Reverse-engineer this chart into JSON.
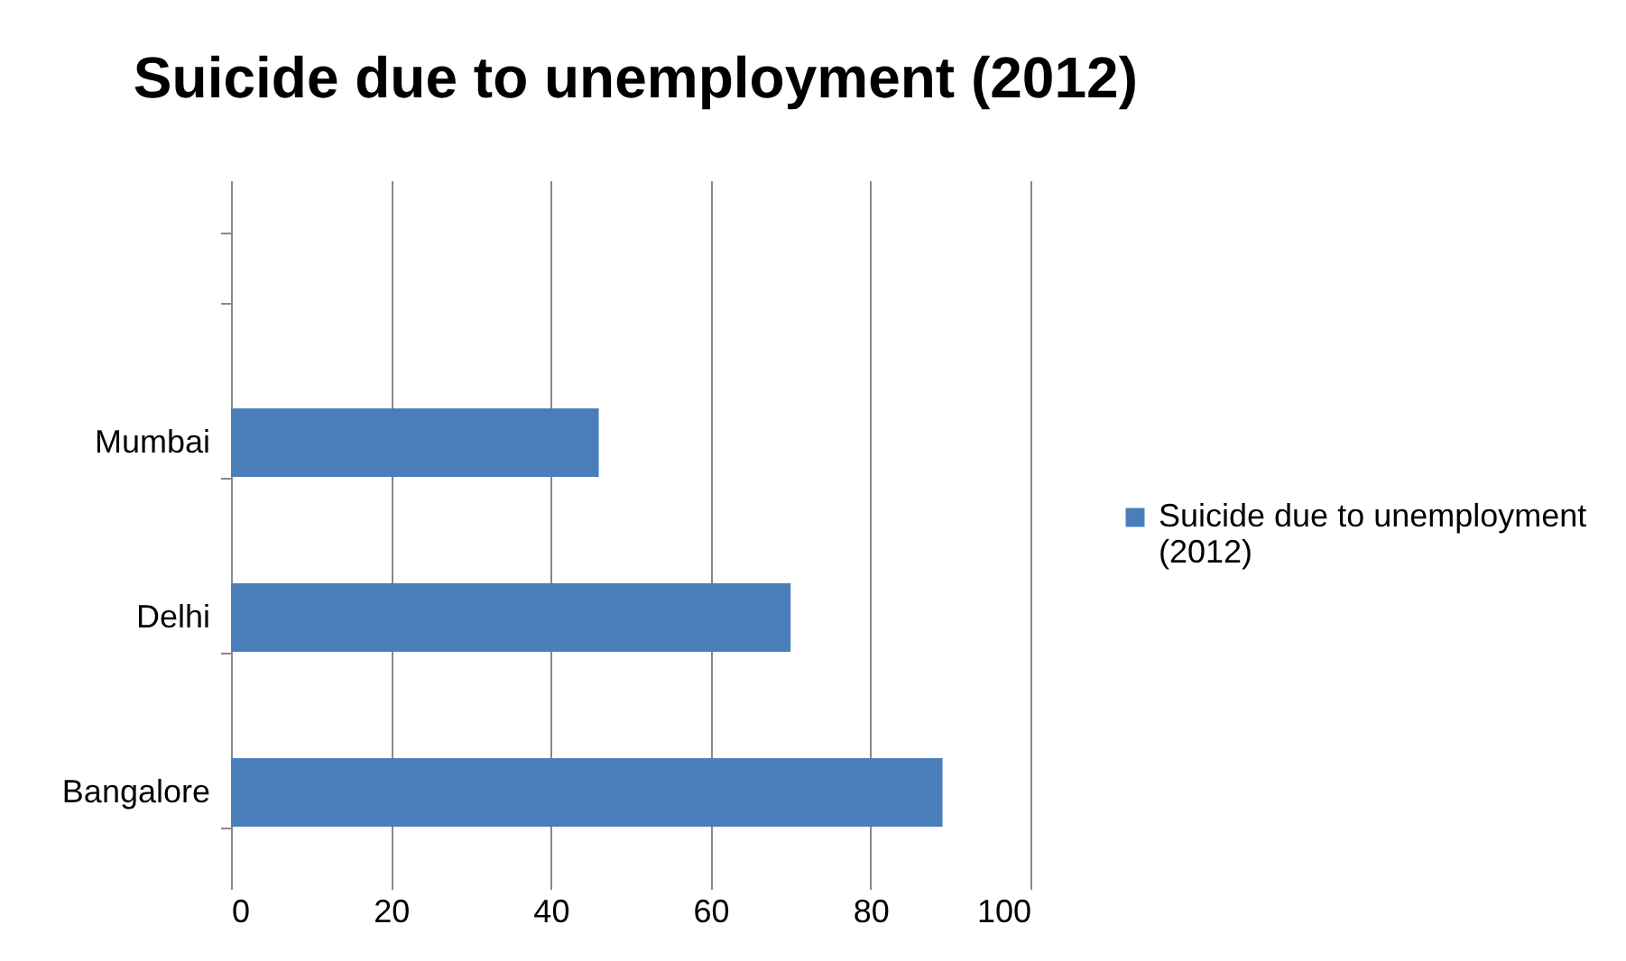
{
  "chart_data": {
    "type": "bar",
    "orientation": "horizontal",
    "title": "Suicide due to unemployment  (2012)",
    "categories": [
      null,
      "Mumbai",
      "Delhi",
      "Bangalore"
    ],
    "series": [
      {
        "name": "Suicide due to unemployment (2012)",
        "color": "#4a7ebb",
        "values": [
          null,
          46,
          70,
          89
        ]
      }
    ],
    "xlim": [
      0,
      100
    ],
    "xticks": [
      0,
      20,
      40,
      60,
      80,
      100
    ],
    "grid": "x",
    "legend": "right"
  }
}
